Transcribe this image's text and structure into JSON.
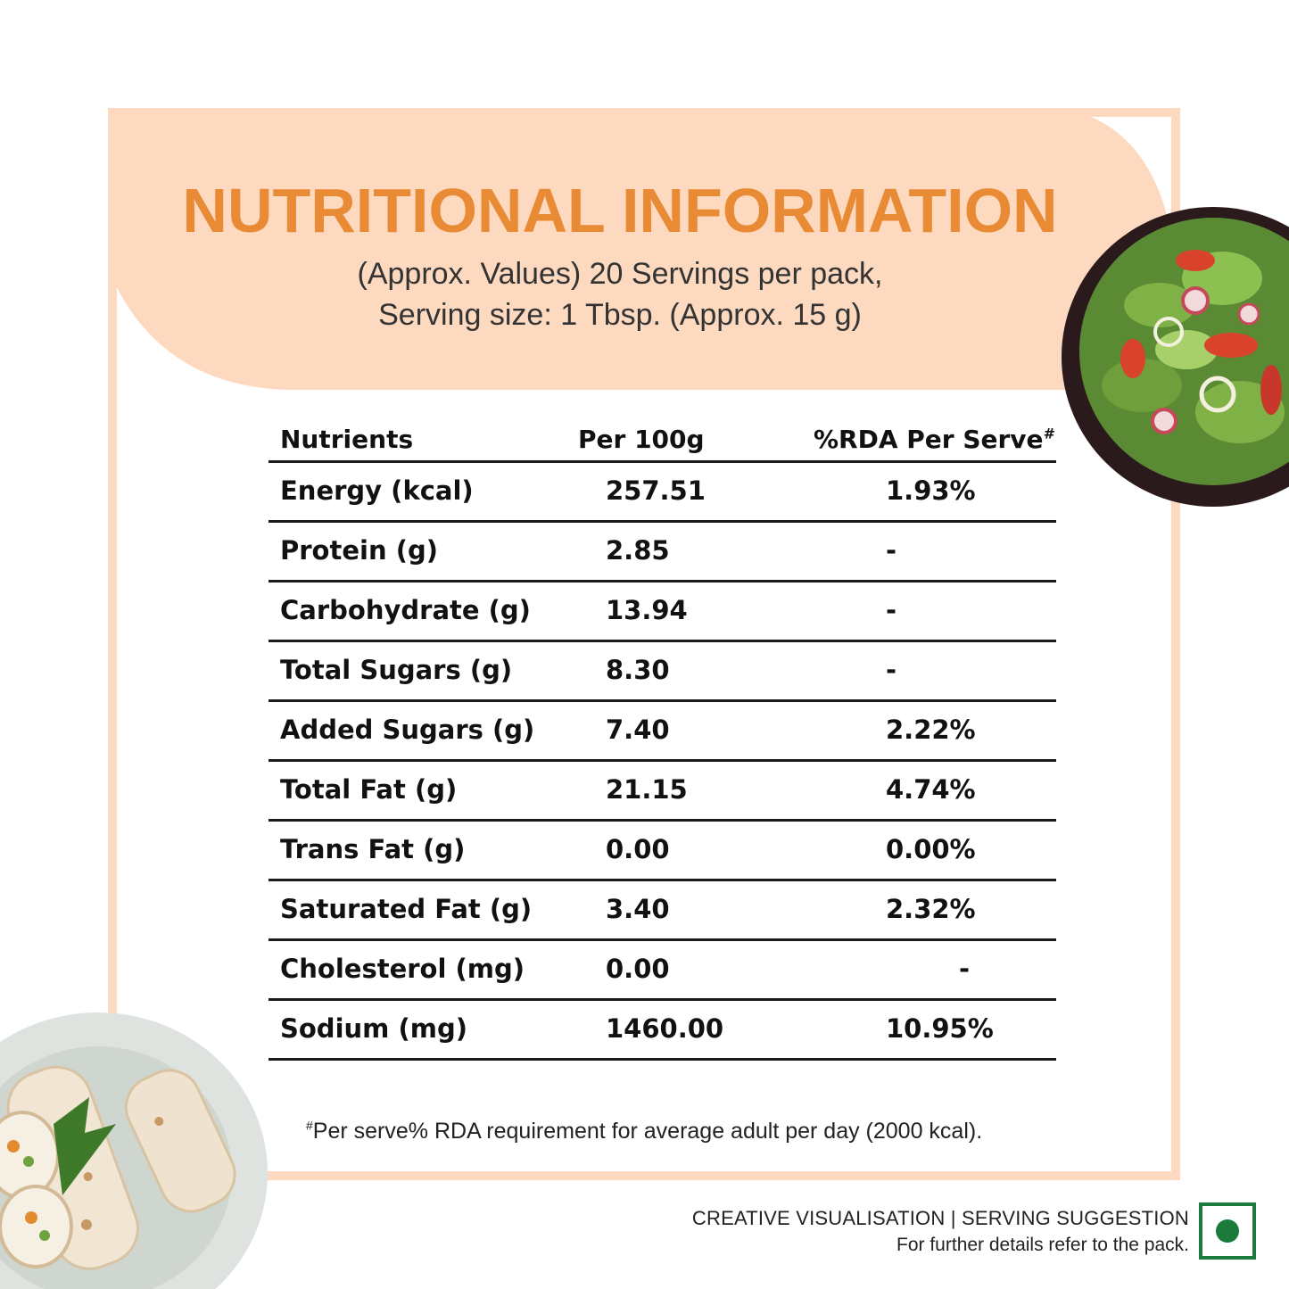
{
  "header": {
    "title": "NUTRITIONAL INFORMATION",
    "subtitle_line1": "(Approx. Values) 20 Servings per pack,",
    "subtitle_line2": "Serving size: 1 Tbsp. (Approx. 15 g)"
  },
  "table": {
    "columns": [
      "Nutrients",
      "Per 100g",
      "%RDA Per Serve"
    ],
    "rda_marker": "#",
    "rows": [
      {
        "nutrient": "Energy (kcal)",
        "per100g": "257.51",
        "rda": "1.93%"
      },
      {
        "nutrient": "Protein (g)",
        "per100g": "2.85",
        "rda": "-"
      },
      {
        "nutrient": "Carbohydrate (g)",
        "per100g": "13.94",
        "rda": "-"
      },
      {
        "nutrient": "Total Sugars (g)",
        "per100g": "8.30",
        "rda": "-"
      },
      {
        "nutrient": "Added Sugars (g)",
        "per100g": "7.40",
        "rda": "2.22%"
      },
      {
        "nutrient": "Total Fat (g)",
        "per100g": "21.15",
        "rda": "4.74%"
      },
      {
        "nutrient": "Trans Fat (g)",
        "per100g": "0.00",
        "rda": "0.00%"
      },
      {
        "nutrient": "Saturated Fat (g)",
        "per100g": "3.40",
        "rda": "2.32%"
      },
      {
        "nutrient": "Cholesterol (mg)",
        "per100g": "0.00",
        "rda": "-"
      },
      {
        "nutrient": "Sodium (mg)",
        "per100g": "1460.00",
        "rda": "10.95%"
      }
    ]
  },
  "footnote": {
    "marker": "#",
    "text": "Per serve% RDA requirement for average adult per day (2000 kcal)."
  },
  "disclaimer": {
    "line1": "CREATIVE  VISUALISATION | SERVING  SUGGESTION",
    "line2": "For further details refer to the pack."
  },
  "icons": {
    "veg_mark": "veg-symbol-icon",
    "salad": "salad-bowl-icon",
    "wraps": "wrap-plate-icon"
  },
  "colors": {
    "title": "#e98a35",
    "header_band": "#fdd9bf",
    "veg_green": "#1b7a3c"
  }
}
